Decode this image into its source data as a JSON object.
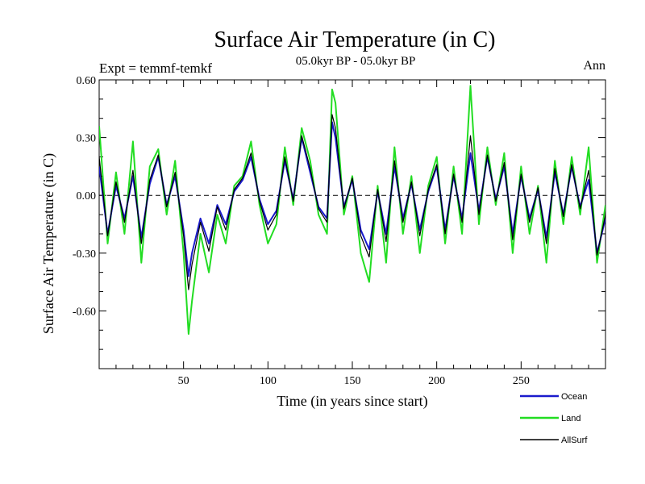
{
  "chart_data": {
    "type": "line",
    "title": "Surface Air Temperature (in C)",
    "subtitle": "05.0kyr BP - 05.0kyr BP",
    "left_label": "Expt = temmf-temkf",
    "right_label": "Ann",
    "xlabel": "Time (in years since start)",
    "ylabel": "Surface Air Temperature (in C)",
    "xlim": [
      0,
      300
    ],
    "ylim": [
      -0.9,
      0.6
    ],
    "x_ticks": [
      50,
      100,
      150,
      200,
      250
    ],
    "x_tick_labels": [
      "50",
      "100",
      "150",
      "200",
      "250"
    ],
    "y_ticks": [
      0.6,
      0.3,
      0.0,
      -0.3,
      -0.6
    ],
    "y_tick_labels": [
      "0.60",
      "0.30",
      "0.00",
      "-0.30",
      "-0.60"
    ],
    "zero_line": "dashed",
    "legend_position": "bottom-right",
    "colors": {
      "Ocean": "#1a1acc",
      "Land": "#22dd22",
      "AllSurf": "#000000"
    },
    "x": [
      0,
      5,
      10,
      15,
      20,
      25,
      30,
      35,
      40,
      45,
      50,
      53,
      55,
      60,
      65,
      70,
      75,
      80,
      85,
      90,
      95,
      100,
      105,
      110,
      115,
      120,
      125,
      130,
      135,
      138,
      140,
      145,
      150,
      155,
      160,
      165,
      170,
      175,
      180,
      185,
      190,
      195,
      200,
      205,
      210,
      215,
      220,
      225,
      230,
      235,
      240,
      245,
      250,
      255,
      260,
      265,
      270,
      275,
      280,
      285,
      290,
      295,
      300
    ],
    "series": [
      {
        "name": "Land",
        "values": [
          0.36,
          -0.25,
          0.12,
          -0.2,
          0.28,
          -0.35,
          0.15,
          0.24,
          -0.1,
          0.18,
          -0.3,
          -0.72,
          -0.55,
          -0.2,
          -0.4,
          -0.1,
          -0.25,
          0.05,
          0.1,
          0.28,
          -0.05,
          -0.25,
          -0.15,
          0.25,
          -0.05,
          0.35,
          0.18,
          -0.1,
          -0.2,
          0.55,
          0.48,
          -0.1,
          0.1,
          -0.3,
          -0.45,
          0.05,
          -0.35,
          0.25,
          -0.2,
          0.1,
          -0.3,
          0.05,
          0.2,
          -0.25,
          0.15,
          -0.2,
          0.57,
          -0.15,
          0.25,
          -0.05,
          0.22,
          -0.3,
          0.15,
          -0.2,
          0.05,
          -0.35,
          0.18,
          -0.15,
          0.2,
          -0.1,
          0.25,
          -0.35,
          -0.05
        ]
      },
      {
        "name": "Ocean",
        "values": [
          0.15,
          -0.2,
          0.05,
          -0.12,
          0.1,
          -0.22,
          0.06,
          0.2,
          -0.05,
          0.1,
          -0.18,
          -0.42,
          -0.3,
          -0.12,
          -0.25,
          -0.05,
          -0.15,
          0.02,
          0.08,
          0.2,
          -0.02,
          -0.15,
          -0.08,
          0.18,
          -0.02,
          0.3,
          0.12,
          -0.06,
          -0.12,
          0.38,
          0.3,
          -0.06,
          0.08,
          -0.18,
          -0.28,
          0.02,
          -0.2,
          0.15,
          -0.12,
          0.06,
          -0.18,
          0.02,
          0.15,
          -0.18,
          0.1,
          -0.12,
          0.22,
          -0.08,
          0.2,
          -0.02,
          0.15,
          -0.2,
          0.1,
          -0.12,
          0.03,
          -0.22,
          0.12,
          -0.1,
          0.15,
          -0.06,
          0.08,
          -0.3,
          -0.12
        ]
      },
      {
        "name": "AllSurf",
        "values": [
          0.2,
          -0.21,
          0.07,
          -0.14,
          0.13,
          -0.25,
          0.08,
          0.21,
          -0.06,
          0.12,
          -0.21,
          -0.49,
          -0.36,
          -0.14,
          -0.29,
          -0.06,
          -0.18,
          0.03,
          0.09,
          0.22,
          -0.03,
          -0.18,
          -0.1,
          0.2,
          -0.03,
          0.31,
          0.14,
          -0.07,
          -0.14,
          0.42,
          0.35,
          -0.07,
          0.09,
          -0.21,
          -0.32,
          0.03,
          -0.24,
          0.18,
          -0.14,
          0.07,
          -0.21,
          0.03,
          0.16,
          -0.2,
          0.11,
          -0.14,
          0.31,
          -0.1,
          0.21,
          -0.03,
          0.17,
          -0.23,
          0.11,
          -0.14,
          0.04,
          -0.25,
          0.14,
          -0.11,
          0.16,
          -0.07,
          0.13,
          -0.31,
          -0.1
        ]
      }
    ]
  }
}
